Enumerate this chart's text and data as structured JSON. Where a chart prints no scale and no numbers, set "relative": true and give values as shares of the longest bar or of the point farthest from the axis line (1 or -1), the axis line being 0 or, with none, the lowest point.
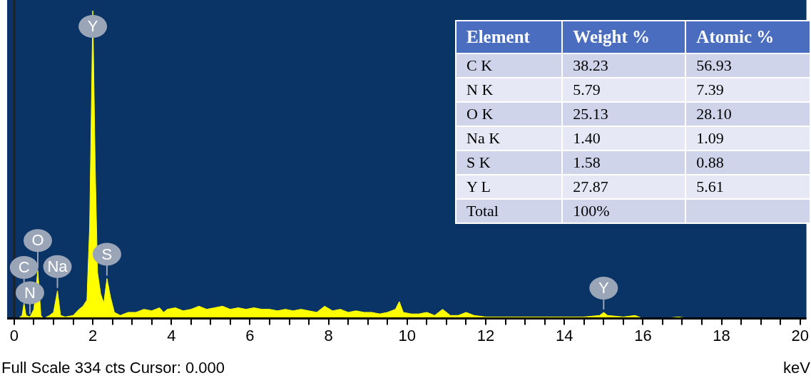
{
  "chart_data": [
    {
      "type": "area",
      "relative": true,
      "xlabel": "keV",
      "xlim": [
        -0.18,
        20.16
      ],
      "xticks": [
        0,
        {
          "value": 0.5,
          "label": null
        },
        {
          "value": 1,
          "label": null
        },
        {
          "value": 1.5,
          "label": null
        },
        2,
        {
          "value": 2.5,
          "label": null
        },
        {
          "value": 3,
          "label": null
        },
        {
          "value": 3.5,
          "label": null
        },
        4,
        {
          "value": 4.5,
          "label": null
        },
        {
          "value": 5,
          "label": null
        },
        {
          "value": 5.5,
          "label": null
        },
        6,
        {
          "value": 6.5,
          "label": null
        },
        {
          "value": 7,
          "label": null
        },
        {
          "value": 7.5,
          "label": null
        },
        8,
        {
          "value": 8.5,
          "label": null
        },
        {
          "value": 9,
          "label": null
        },
        {
          "value": 9.5,
          "label": null
        },
        10,
        {
          "value": 10.5,
          "label": null
        },
        {
          "value": 11,
          "label": null
        },
        {
          "value": 11.5,
          "label": null
        },
        12,
        {
          "value": 12.5,
          "label": null
        },
        {
          "value": 13,
          "label": null
        },
        {
          "value": 13.5,
          "label": null
        },
        14,
        {
          "value": 14.5,
          "label": null
        },
        {
          "value": 15,
          "label": null
        },
        {
          "value": 15.5,
          "label": null
        },
        16,
        {
          "value": 16.5,
          "label": null
        },
        {
          "value": 17,
          "label": null
        },
        {
          "value": 17.5,
          "label": null
        },
        18,
        {
          "value": 18.5,
          "label": null
        },
        {
          "value": 19,
          "label": null
        },
        {
          "value": 19.5,
          "label": null
        },
        20
      ],
      "x": [
        0.1,
        0.2,
        0.25,
        0.3,
        0.4,
        0.5,
        0.6,
        0.68,
        0.75,
        0.9,
        1.0,
        1.1,
        1.18,
        1.3,
        1.5,
        1.65,
        1.75,
        1.85,
        1.92,
        2.0,
        2.06,
        2.12,
        2.2,
        2.28,
        2.36,
        2.45,
        2.55,
        2.7,
        2.9,
        3.1,
        3.3,
        3.5,
        3.7,
        3.8,
        3.9,
        4.1,
        4.3,
        4.5,
        4.7,
        4.9,
        5.1,
        5.3,
        5.5,
        5.7,
        5.9,
        6.1,
        6.3,
        6.5,
        6.7,
        6.9,
        7.1,
        7.3,
        7.5,
        7.7,
        7.9,
        8.1,
        8.3,
        8.5,
        8.7,
        8.9,
        9.1,
        9.3,
        9.5,
        9.7,
        9.8,
        9.9,
        10.1,
        10.3,
        10.5,
        10.7,
        10.9,
        11.1,
        11.3,
        11.5,
        11.7,
        12,
        12.5,
        13,
        13.5,
        14,
        14.5,
        14.9,
        15.0,
        15.1,
        15.5,
        15.8,
        16,
        16.5,
        16.9,
        17.2,
        18,
        19,
        20
      ],
      "series": [
        {
          "color": "#ffff00",
          "values": [
            0,
            0.01,
            0.05,
            0.01,
            0.005,
            0.03,
            0.156,
            0.01,
            0,
            0.01,
            0.02,
            0.09,
            0.01,
            0.005,
            0.01,
            0.03,
            0.04,
            0.06,
            0.3,
            1,
            0.5,
            0.15,
            0.08,
            0.05,
            0.13,
            0.07,
            0.02,
            0.01,
            0.02,
            0.02,
            0.03,
            0.025,
            0.035,
            0.02,
            0.03,
            0.035,
            0.025,
            0.03,
            0.04,
            0.03,
            0.035,
            0.04,
            0.03,
            0.035,
            0.03,
            0.035,
            0.03,
            0.03,
            0.025,
            0.03,
            0.025,
            0.03,
            0.025,
            0.02,
            0.04,
            0.025,
            0.03,
            0.02,
            0.025,
            0.02,
            0.02,
            0.015,
            0.02,
            0.03,
            0.055,
            0.02,
            0.015,
            0.015,
            0.02,
            0.01,
            0.03,
            0.01,
            0.01,
            0.02,
            0.01,
            0.005,
            0.005,
            0.005,
            0.005,
            0.005,
            0.005,
            0.01,
            0.02,
            0.01,
            0.005,
            0.01,
            0,
            0,
            0.005,
            0,
            0,
            0,
            0
          ]
        }
      ],
      "ref_lines": [
        {
          "axis": "x",
          "value": 0,
          "color": "#222222"
        }
      ],
      "annotations": [
        {
          "text": "Y",
          "x": 2.0,
          "y": 1
        },
        {
          "text": "N",
          "x": 0.4,
          "y": 0.005
        },
        {
          "text": "C",
          "x": 0.25,
          "y": 0.05
        },
        {
          "text": "O",
          "x": 0.6,
          "y": 0.156
        },
        {
          "text": "Na",
          "x": 1.1,
          "y": 0.09
        },
        {
          "text": "S",
          "x": 2.36,
          "y": 0.13
        },
        {
          "text": "Y",
          "x": 15.0,
          "y": 0.02
        },
        "Full Scale 334 cts Cursor: 0.000"
      ]
    },
    {
      "type": "other",
      "annotations": [
        "Element",
        "Weight %",
        "Atomic %",
        "C K",
        "38.23",
        "56.93",
        "N K",
        "5.79",
        "7.39",
        "O K",
        "25.13",
        "28.10",
        "Na K",
        "1.40",
        "1.09",
        "S K",
        "1.58",
        "0.88",
        "Y L",
        "27.87",
        "5.61",
        "Total",
        "100%"
      ]
    }
  ]
}
